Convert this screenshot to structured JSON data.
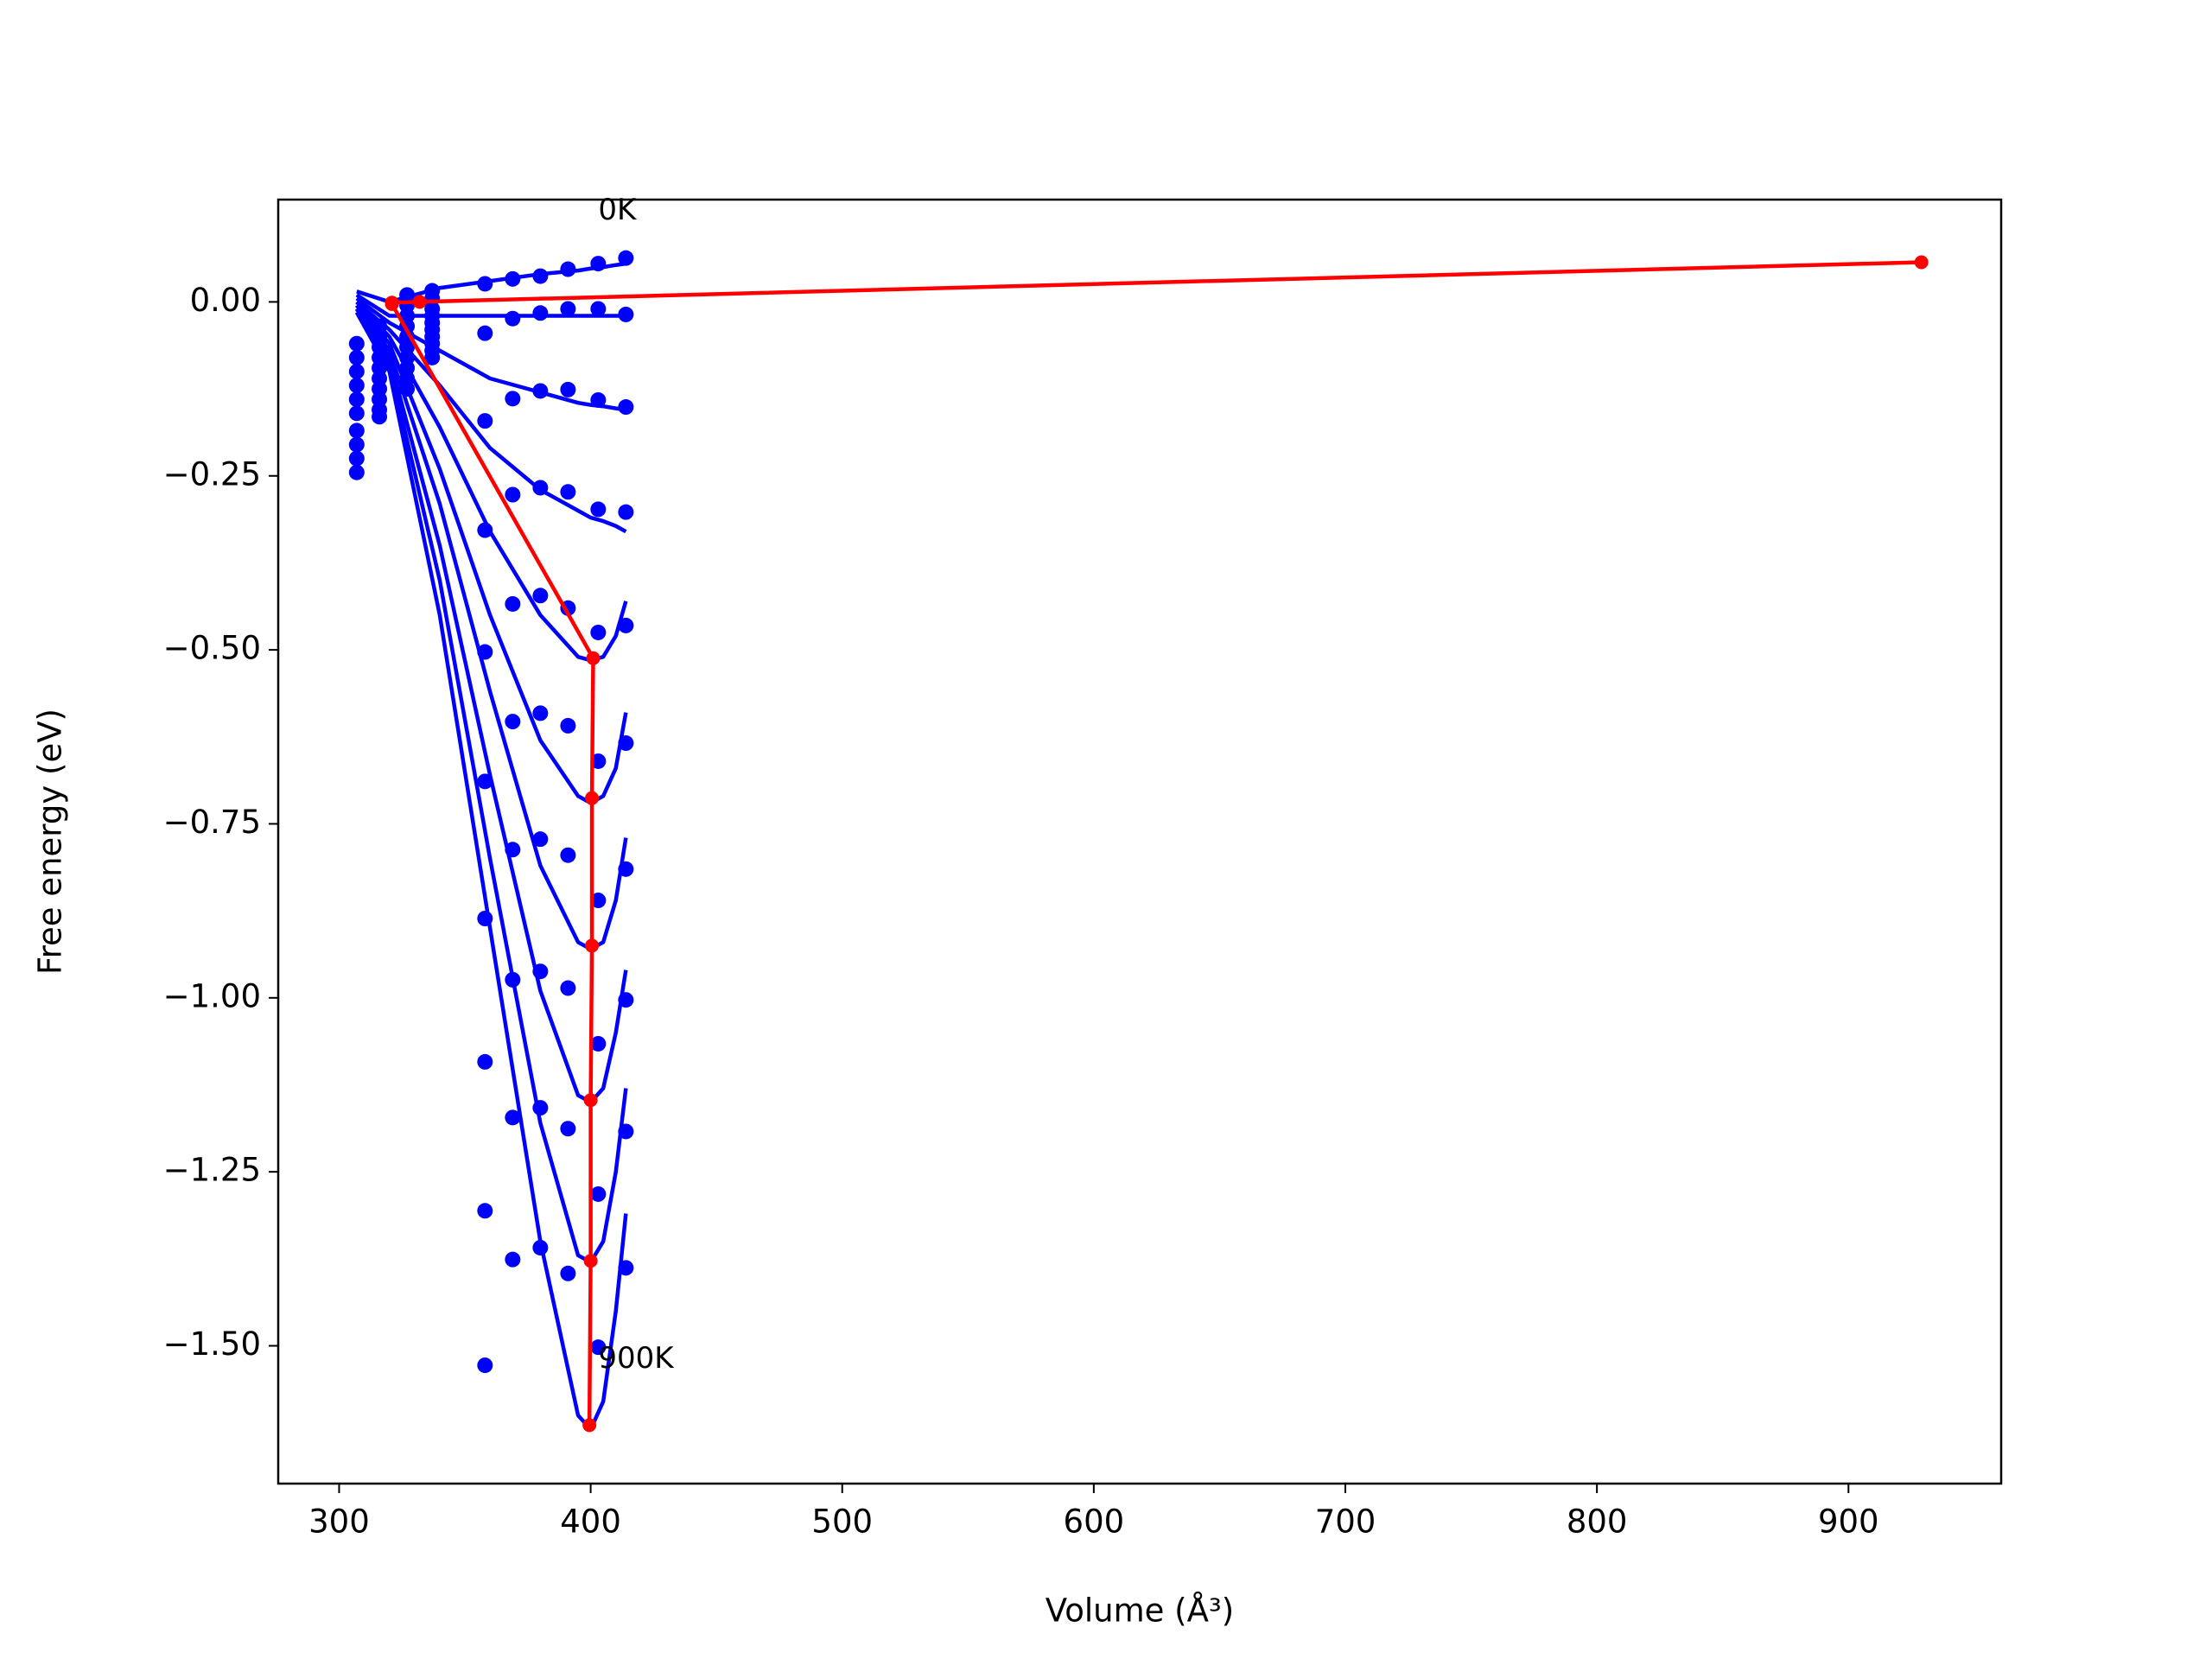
{
  "chart_data": {
    "type": "scatter",
    "xlabel": "Volume (Å³)",
    "ylabel": "Free energy (eV)",
    "xlim": [
      275.8,
      960.7
    ],
    "ylim": [
      -1.698,
      0.147
    ],
    "xticks": [
      300,
      400,
      500,
      600,
      700,
      800,
      900
    ],
    "yticks": [
      {
        "value": 0,
        "label": "0.00"
      },
      {
        "value": -0.25,
        "label": "−0.25"
      },
      {
        "value": -0.5,
        "label": "−0.50"
      },
      {
        "value": -0.75,
        "label": "−0.75"
      },
      {
        "value": -1,
        "label": "−1.00"
      },
      {
        "value": -1.25,
        "label": "−1.25"
      },
      {
        "value": -1.5,
        "label": "−1.50"
      }
    ],
    "x": [
      307,
      316,
      327,
      337,
      358,
      369,
      380,
      391,
      403,
      414
    ],
    "series": [
      {
        "color": "#0000ff",
        "values": [
          -0.06,
          -0.035,
          0.01,
          0.016,
          0.026,
          0.033,
          0.037,
          0.047,
          0.055,
          0.063
        ]
      },
      {
        "color": "#0000ff",
        "values": [
          -0.08,
          -0.05,
          -0.005,
          0.005,
          -0.045,
          -0.024,
          -0.016,
          -0.01,
          -0.01,
          -0.018
        ]
      },
      {
        "color": "#0000ff",
        "values": [
          -0.1,
          -0.065,
          -0.02,
          -0.01,
          -0.171,
          -0.139,
          -0.128,
          -0.126,
          -0.141,
          -0.151
        ]
      },
      {
        "color": "#0000ff",
        "values": [
          -0.12,
          -0.08,
          -0.035,
          -0.02,
          -0.328,
          -0.277,
          -0.267,
          -0.273,
          -0.298,
          -0.302
        ]
      },
      {
        "color": "#0000ff",
        "values": [
          -0.14,
          -0.095,
          -0.05,
          -0.03,
          -0.503,
          -0.434,
          -0.422,
          -0.44,
          -0.475,
          -0.465
        ]
      },
      {
        "color": "#0000ff",
        "values": [
          -0.16,
          -0.11,
          -0.065,
          -0.04,
          -0.689,
          -0.603,
          -0.591,
          -0.609,
          -0.66,
          -0.634
        ]
      },
      {
        "color": "#0000ff",
        "values": [
          -0.185,
          -0.125,
          -0.08,
          -0.05,
          -0.886,
          -0.787,
          -0.772,
          -0.795,
          -0.86,
          -0.815
        ]
      },
      {
        "color": "#0000ff",
        "values": [
          -0.205,
          -0.14,
          -0.095,
          -0.06,
          -1.092,
          -0.974,
          -0.962,
          -0.986,
          -1.066,
          -1.003
        ]
      },
      {
        "color": "#0000ff",
        "values": [
          -0.225,
          -0.155,
          -0.11,
          -0.07,
          -1.306,
          -1.172,
          -1.158,
          -1.188,
          -1.282,
          -1.192
        ]
      },
      {
        "color": "#0000ff",
        "values": [
          -0.245,
          -0.165,
          -0.125,
          -0.08,
          -1.528,
          -1.376,
          -1.359,
          -1.396,
          -1.502,
          -1.388
        ]
      }
    ],
    "fit_x": [
      307,
      320,
      340,
      360,
      380,
      395,
      400,
      405,
      410,
      414
    ],
    "fits": [
      {
        "color": "#0000ff",
        "values": [
          0.015,
          0.0,
          0.02,
          0.03,
          0.04,
          0.045,
          0.048,
          0.05,
          0.053,
          0.055
        ]
      },
      {
        "color": "#0000ff",
        "values": [
          0.01,
          -0.02,
          -0.02,
          -0.02,
          -0.02,
          -0.02,
          -0.02,
          -0.02,
          -0.02,
          -0.02
        ]
      },
      {
        "color": "#0000ff",
        "values": [
          0.005,
          -0.03,
          -0.07,
          -0.11,
          -0.13,
          -0.145,
          -0.148,
          -0.15,
          -0.153,
          -0.155
        ]
      },
      {
        "color": "#0000ff",
        "values": [
          0.0,
          -0.04,
          -0.12,
          -0.21,
          -0.27,
          -0.3,
          -0.31,
          -0.315,
          -0.322,
          -0.33
        ]
      },
      {
        "color": "#0000ff",
        "values": [
          0.0,
          -0.05,
          -0.18,
          -0.33,
          -0.45,
          -0.51,
          -0.515,
          -0.51,
          -0.48,
          -0.43
        ]
      },
      {
        "color": "#0000ff",
        "values": [
          -0.005,
          -0.06,
          -0.24,
          -0.45,
          -0.63,
          -0.71,
          -0.72,
          -0.71,
          -0.67,
          -0.59
        ]
      },
      {
        "color": "#0000ff",
        "values": [
          -0.005,
          -0.07,
          -0.29,
          -0.56,
          -0.81,
          -0.92,
          -0.93,
          -0.92,
          -0.86,
          -0.77
        ]
      },
      {
        "color": "#0000ff",
        "values": [
          -0.01,
          -0.08,
          -0.35,
          -0.68,
          -0.99,
          -1.14,
          -1.15,
          -1.13,
          -1.05,
          -0.96
        ]
      },
      {
        "color": "#0000ff",
        "values": [
          -0.01,
          -0.09,
          -0.4,
          -0.8,
          -1.18,
          -1.37,
          -1.38,
          -1.35,
          -1.25,
          -1.13
        ]
      },
      {
        "color": "#0000ff",
        "values": [
          -0.015,
          -0.1,
          -0.45,
          -0.9,
          -1.35,
          -1.6,
          -1.62,
          -1.58,
          -1.45,
          -1.31
        ]
      }
    ],
    "minima": {
      "color": "#ff0000",
      "x": [
        929,
        332,
        321,
        321,
        401,
        400.5,
        400.5,
        400,
        400,
        399.5
      ],
      "values": [
        0.057,
        0.0,
        -0.001,
        -0.003,
        -0.512,
        -0.713,
        -0.925,
        -1.147,
        -1.378,
        -1.614
      ]
    },
    "annotations": [
      {
        "text": "0K",
        "x": 403,
        "y": 0.13
      },
      {
        "text": "900K",
        "x": 403,
        "y": -1.52
      }
    ]
  }
}
